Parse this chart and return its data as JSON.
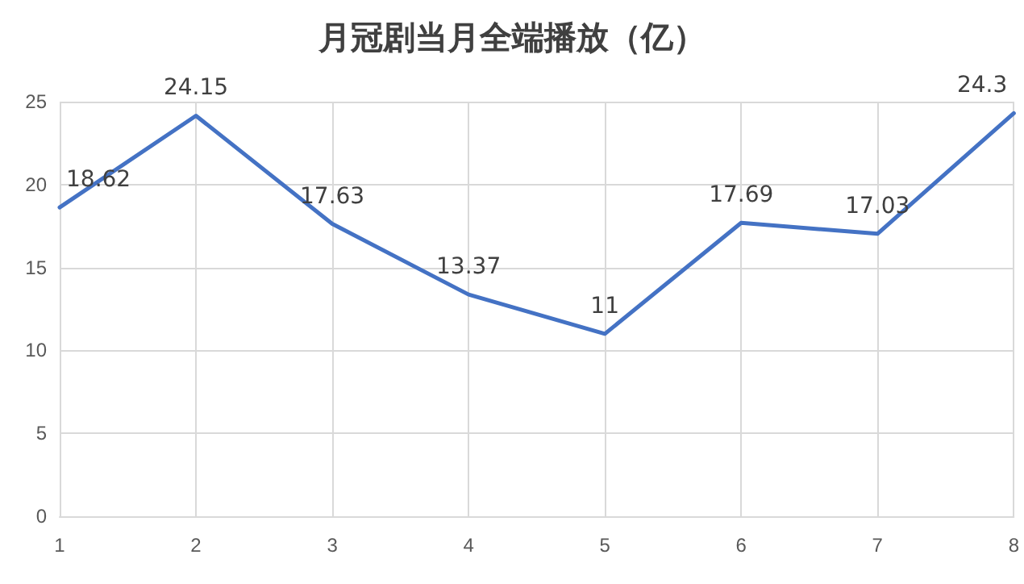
{
  "chart_data": {
    "type": "line",
    "title": "月冠剧当月全端播放（亿）",
    "categories": [
      "1",
      "2",
      "3",
      "4",
      "5",
      "6",
      "7",
      "8"
    ],
    "series": [
      {
        "color": "#4472c4",
        "values": [
          18.62,
          24.15,
          17.63,
          13.37,
          11,
          17.69,
          17.03,
          24.3
        ]
      }
    ],
    "ylim": [
      0,
      25
    ],
    "yticks": [
      0,
      5,
      10,
      15,
      20,
      25
    ],
    "grid": true,
    "data_labels": true,
    "marker": "none",
    "line_style": "solid"
  }
}
